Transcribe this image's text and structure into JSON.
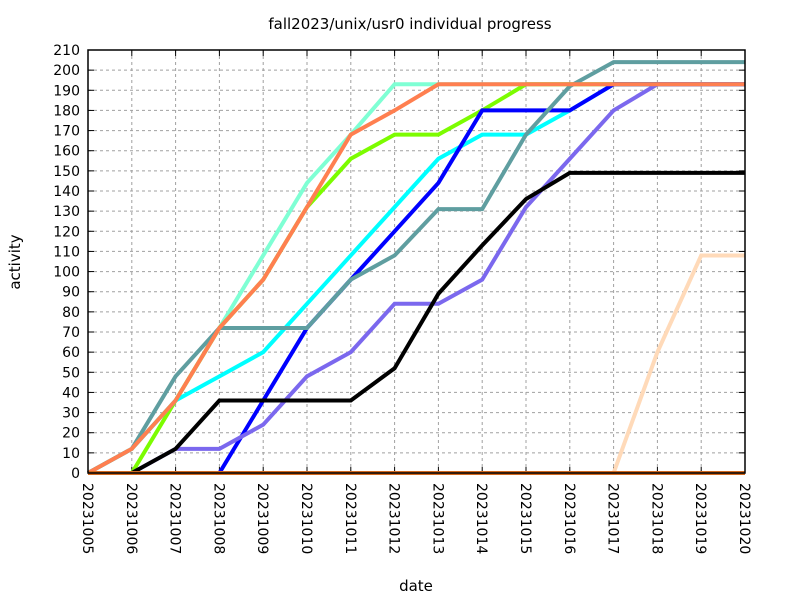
{
  "chart_data": {
    "type": "line",
    "title": "fall2023/unix/usr0 individual progress",
    "xlabel": "date",
    "ylabel": "activity",
    "grid": true,
    "ylim": [
      0,
      210
    ],
    "yticks": [
      0,
      10,
      20,
      30,
      40,
      50,
      60,
      70,
      80,
      90,
      100,
      110,
      120,
      130,
      140,
      150,
      160,
      170,
      180,
      190,
      200,
      210
    ],
    "categories": [
      "20231005",
      "20231006",
      "20231007",
      "20231008",
      "20231009",
      "20231010",
      "20231011",
      "20231012",
      "20231013",
      "20231014",
      "20231015",
      "20231016",
      "20231017",
      "20231018",
      "20231019",
      "20231020"
    ],
    "series": [
      {
        "color": "#7fffd4",
        "values": [
          0,
          12,
          36,
          72,
          108,
          144,
          168,
          193,
          193,
          193,
          193,
          193,
          193,
          193,
          193,
          193
        ]
      },
      {
        "color": "#7cfc00",
        "values": [
          0,
          0,
          36,
          72,
          96,
          132,
          156,
          168,
          168,
          180,
          193,
          193,
          193,
          193,
          193,
          193
        ]
      },
      {
        "color": "#00ffff",
        "values": [
          0,
          12,
          36,
          48,
          60,
          84,
          108,
          132,
          156,
          168,
          168,
          180,
          193,
          193,
          193,
          193
        ]
      },
      {
        "color": "#0000ff",
        "values": [
          0,
          0,
          0,
          0,
          36,
          72,
          96,
          120,
          144,
          180,
          180,
          180,
          193,
          193,
          193,
          193
        ]
      },
      {
        "color": "#5f9ea0",
        "values": [
          0,
          12,
          48,
          72,
          72,
          72,
          96,
          108,
          131,
          131,
          168,
          192,
          204,
          204,
          204,
          204
        ]
      },
      {
        "color": "#7b68ee",
        "values": [
          0,
          0,
          12,
          12,
          24,
          48,
          60,
          84,
          84,
          96,
          132,
          156,
          180,
          193,
          193,
          193
        ]
      },
      {
        "color": "#000000",
        "values": [
          0,
          0,
          12,
          36,
          36,
          36,
          36,
          52,
          89,
          113,
          136,
          149,
          149,
          149,
          149,
          149
        ]
      },
      {
        "color": "#ffdab9",
        "values": [
          0,
          0,
          0,
          0,
          0,
          0,
          0,
          0,
          0,
          0,
          0,
          0,
          0,
          60,
          108,
          108
        ]
      },
      {
        "color": "#ff7f50",
        "values": [
          0,
          12,
          36,
          72,
          96,
          132,
          168,
          180,
          193,
          193,
          193,
          193,
          193,
          193,
          193,
          193
        ]
      },
      {
        "color": "#d2691e",
        "values": [
          0,
          0,
          0,
          0,
          0,
          0,
          0,
          0,
          0,
          0,
          0,
          0,
          0,
          0,
          0,
          0
        ]
      }
    ]
  }
}
